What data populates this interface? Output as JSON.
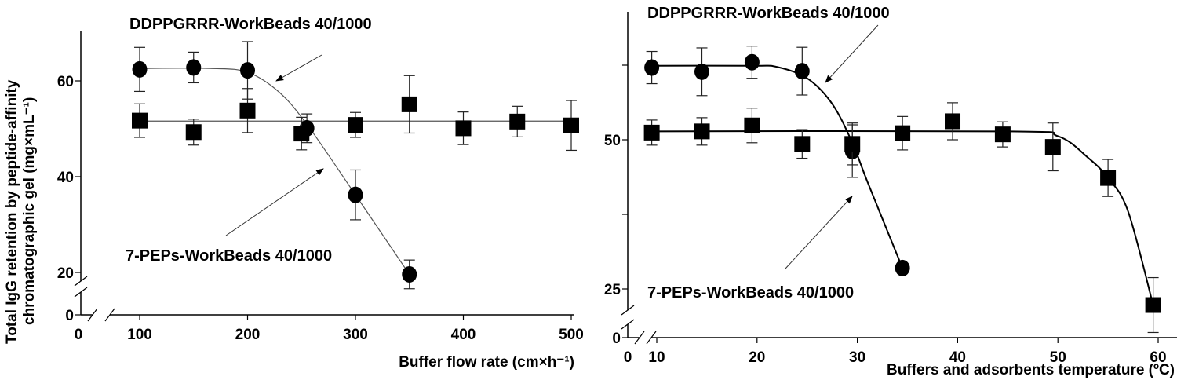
{
  "chart_data": [
    {
      "type": "scatter",
      "xlabel": "Buffer flow rate (cm×h⁻¹)",
      "ylabel_lines": [
        "Total IgG retention by peptide-affinity",
        "chromatographic gel (mg×mL⁻¹)"
      ],
      "x_ticks": [
        0,
        100,
        200,
        300,
        400,
        500
      ],
      "y_ticks": [
        0,
        20,
        40,
        60
      ],
      "xlim": [
        0,
        500
      ],
      "ylim": [
        0,
        70
      ],
      "axis_breaks": {
        "x": true,
        "y": true
      },
      "grid": false,
      "annotations": [
        "DDPPGRRR-WorkBeads 40/1000",
        "7-PEPs-WorkBeads 40/1000"
      ],
      "series": [
        {
          "marker": "circle",
          "fit": "sigmoid",
          "x": [
            100,
            150,
            200,
            255,
            300,
            350
          ],
          "y": [
            62.4,
            62.8,
            62.2,
            50.1,
            36.2,
            19.6
          ],
          "err": [
            4.6,
            3.2,
            6.0,
            3.0,
            5.2,
            3.0
          ]
        },
        {
          "marker": "square",
          "fit": "flat",
          "x": [
            100,
            150,
            200,
            250,
            300,
            350,
            400,
            450,
            500
          ],
          "y": [
            51.7,
            49.3,
            53.8,
            49.0,
            50.8,
            55.1,
            50.1,
            51.5,
            50.7
          ],
          "err": [
            3.5,
            2.7,
            4.6,
            3.4,
            2.6,
            6.0,
            3.4,
            3.2,
            5.2
          ]
        }
      ]
    },
    {
      "type": "scatter",
      "xlabel": "Buffers and adsorbents temperature (ºC)",
      "x_ticks": [
        0,
        10,
        20,
        30,
        40,
        50,
        60
      ],
      "y_ticks": [
        0,
        25,
        50
      ],
      "y_minor_ticks": [
        37.5,
        62.5
      ],
      "xlim": [
        0,
        60
      ],
      "ylim": [
        0,
        72
      ],
      "axis_breaks": {
        "x": true,
        "y": true
      },
      "grid": false,
      "annotations": [
        "DDPPGRRR-WorkBeads 40/1000",
        "7-PEPs-WorkBeads 40/1000"
      ],
      "series": [
        {
          "marker": "circle",
          "fit": "sigmoid",
          "x": [
            9.5,
            14.5,
            19.5,
            24.5,
            29.5,
            34.5
          ],
          "y": [
            62.1,
            61.4,
            63.0,
            61.5,
            48.1,
            28.5
          ],
          "err": [
            2.7,
            4.0,
            2.7,
            4.0,
            4.4,
            0.5
          ]
        },
        {
          "marker": "square",
          "fit": "sigmoid",
          "x": [
            9.5,
            14.5,
            19.5,
            24.5,
            29.5,
            34.5,
            39.5,
            44.5,
            49.5,
            55,
            59.5
          ],
          "y": [
            51.2,
            51.4,
            52.4,
            49.3,
            49.3,
            51.1,
            53.1,
            50.9,
            48.8,
            43.6,
            22.3
          ],
          "err": [
            2.1,
            2.3,
            2.9,
            2.4,
            3.5,
            2.8,
            3.1,
            2.1,
            4.0,
            3.1,
            4.6
          ]
        }
      ]
    }
  ]
}
